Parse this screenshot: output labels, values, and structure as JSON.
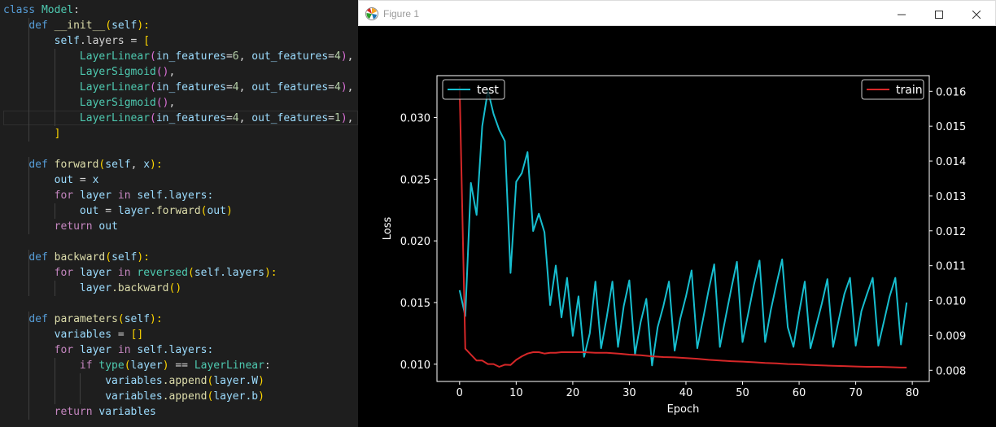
{
  "editor": {
    "lines": [
      [
        [
          "class ",
          "#569cd6"
        ],
        [
          "Model",
          "#4ec9b0"
        ],
        [
          ":",
          "#d4d4d4"
        ]
      ],
      [
        [
          "    ",
          ""
        ],
        [
          "def ",
          "#569cd6"
        ],
        [
          "__init__",
          "#dcdcaa"
        ],
        [
          "(",
          "#ffd700"
        ],
        [
          "self",
          "#9cdcfe"
        ],
        [
          "):",
          "#ffd700"
        ]
      ],
      [
        [
          "        ",
          ""
        ],
        [
          "self",
          "#9cdcfe"
        ],
        [
          ".layers = ",
          "#d4d4d4"
        ],
        [
          "[",
          "#ffd700"
        ]
      ],
      [
        [
          "            ",
          ""
        ],
        [
          "LayerLinear",
          "#4ec9b0"
        ],
        [
          "(",
          "#da70d6"
        ],
        [
          "in_features",
          "#9cdcfe"
        ],
        [
          "=",
          "#d4d4d4"
        ],
        [
          "6",
          "#b5cea8"
        ],
        [
          ", ",
          "#d4d4d4"
        ],
        [
          "out_features",
          "#9cdcfe"
        ],
        [
          "=",
          "#d4d4d4"
        ],
        [
          "4",
          "#b5cea8"
        ],
        [
          ")",
          "#da70d6"
        ],
        [
          ", ",
          "#d4d4d4"
        ],
        [
          "#",
          "#6a9955"
        ]
      ],
      [
        [
          "            ",
          ""
        ],
        [
          "LayerSigmoid",
          "#4ec9b0"
        ],
        [
          "()",
          "#da70d6"
        ],
        [
          ",",
          "#d4d4d4"
        ]
      ],
      [
        [
          "            ",
          ""
        ],
        [
          "LayerLinear",
          "#4ec9b0"
        ],
        [
          "(",
          "#da70d6"
        ],
        [
          "in_features",
          "#9cdcfe"
        ],
        [
          "=",
          "#d4d4d4"
        ],
        [
          "4",
          "#b5cea8"
        ],
        [
          ", ",
          "#d4d4d4"
        ],
        [
          "out_features",
          "#9cdcfe"
        ],
        [
          "=",
          "#d4d4d4"
        ],
        [
          "4",
          "#b5cea8"
        ],
        [
          ")",
          "#da70d6"
        ],
        [
          ",",
          "#d4d4d4"
        ]
      ],
      [
        [
          "            ",
          ""
        ],
        [
          "LayerSigmoid",
          "#4ec9b0"
        ],
        [
          "()",
          "#da70d6"
        ],
        [
          ",",
          "#d4d4d4"
        ]
      ],
      [
        [
          "            ",
          ""
        ],
        [
          "LayerLinear",
          "#4ec9b0"
        ],
        [
          "(",
          "#da70d6"
        ],
        [
          "in_features",
          "#9cdcfe"
        ],
        [
          "=",
          "#d4d4d4"
        ],
        [
          "4",
          "#b5cea8"
        ],
        [
          ", ",
          "#d4d4d4"
        ],
        [
          "out_features",
          "#9cdcfe"
        ],
        [
          "=",
          "#d4d4d4"
        ],
        [
          "1",
          "#b5cea8"
        ],
        [
          ")",
          "#da70d6"
        ],
        [
          ",",
          "#d4d4d4"
        ]
      ],
      [
        [
          "        ",
          ""
        ],
        [
          "]",
          "#ffd700"
        ]
      ],
      [
        [
          "",
          ""
        ]
      ],
      [
        [
          "    ",
          ""
        ],
        [
          "def ",
          "#569cd6"
        ],
        [
          "forward",
          "#dcdcaa"
        ],
        [
          "(",
          "#ffd700"
        ],
        [
          "self",
          "#9cdcfe"
        ],
        [
          ", ",
          "#d4d4d4"
        ],
        [
          "x",
          "#9cdcfe"
        ],
        [
          "):",
          "#ffd700"
        ]
      ],
      [
        [
          "        ",
          ""
        ],
        [
          "out",
          "#9cdcfe"
        ],
        [
          " = ",
          "#d4d4d4"
        ],
        [
          "x",
          "#9cdcfe"
        ]
      ],
      [
        [
          "        ",
          ""
        ],
        [
          "for ",
          "#c586c0"
        ],
        [
          "layer ",
          "#9cdcfe"
        ],
        [
          "in ",
          "#c586c0"
        ],
        [
          "self",
          "#9cdcfe"
        ],
        [
          ".layers:",
          "#9cdcfe"
        ]
      ],
      [
        [
          "            ",
          ""
        ],
        [
          "out",
          "#9cdcfe"
        ],
        [
          " = ",
          "#d4d4d4"
        ],
        [
          "layer",
          "#9cdcfe"
        ],
        [
          ".forward",
          "#dcdcaa"
        ],
        [
          "(",
          "#ffd700"
        ],
        [
          "out",
          "#9cdcfe"
        ],
        [
          ")",
          "#ffd700"
        ]
      ],
      [
        [
          "        ",
          ""
        ],
        [
          "return ",
          "#c586c0"
        ],
        [
          "out",
          "#9cdcfe"
        ]
      ],
      [
        [
          "",
          ""
        ]
      ],
      [
        [
          "    ",
          ""
        ],
        [
          "def ",
          "#569cd6"
        ],
        [
          "backward",
          "#dcdcaa"
        ],
        [
          "(",
          "#ffd700"
        ],
        [
          "self",
          "#9cdcfe"
        ],
        [
          "):",
          "#ffd700"
        ]
      ],
      [
        [
          "        ",
          ""
        ],
        [
          "for ",
          "#c586c0"
        ],
        [
          "layer ",
          "#9cdcfe"
        ],
        [
          "in ",
          "#c586c0"
        ],
        [
          "reversed",
          "#4ec9b0"
        ],
        [
          "(",
          "#ffd700"
        ],
        [
          "self",
          "#9cdcfe"
        ],
        [
          ".layers",
          "#9cdcfe"
        ],
        [
          "):",
          "#ffd700"
        ]
      ],
      [
        [
          "            ",
          ""
        ],
        [
          "layer",
          "#9cdcfe"
        ],
        [
          ".backward",
          "#dcdcaa"
        ],
        [
          "()",
          "#ffd700"
        ]
      ],
      [
        [
          "",
          ""
        ]
      ],
      [
        [
          "    ",
          ""
        ],
        [
          "def ",
          "#569cd6"
        ],
        [
          "parameters",
          "#dcdcaa"
        ],
        [
          "(",
          "#ffd700"
        ],
        [
          "self",
          "#9cdcfe"
        ],
        [
          "):",
          "#ffd700"
        ]
      ],
      [
        [
          "        ",
          ""
        ],
        [
          "variables",
          "#9cdcfe"
        ],
        [
          " = ",
          "#d4d4d4"
        ],
        [
          "[]",
          "#ffd700"
        ]
      ],
      [
        [
          "        ",
          ""
        ],
        [
          "for ",
          "#c586c0"
        ],
        [
          "layer ",
          "#9cdcfe"
        ],
        [
          "in ",
          "#c586c0"
        ],
        [
          "self",
          "#9cdcfe"
        ],
        [
          ".layers:",
          "#9cdcfe"
        ]
      ],
      [
        [
          "            ",
          ""
        ],
        [
          "if ",
          "#c586c0"
        ],
        [
          "type",
          "#4ec9b0"
        ],
        [
          "(",
          "#ffd700"
        ],
        [
          "layer",
          "#9cdcfe"
        ],
        [
          ")",
          "#ffd700"
        ],
        [
          " == ",
          "#d4d4d4"
        ],
        [
          "LayerLinear",
          "#4ec9b0"
        ],
        [
          ":",
          "#d4d4d4"
        ]
      ],
      [
        [
          "                ",
          ""
        ],
        [
          "variables",
          "#9cdcfe"
        ],
        [
          ".append",
          "#dcdcaa"
        ],
        [
          "(",
          "#ffd700"
        ],
        [
          "layer",
          "#9cdcfe"
        ],
        [
          ".W",
          "#9cdcfe"
        ],
        [
          ")",
          "#ffd700"
        ]
      ],
      [
        [
          "                ",
          ""
        ],
        [
          "variables",
          "#9cdcfe"
        ],
        [
          ".append",
          "#dcdcaa"
        ],
        [
          "(",
          "#ffd700"
        ],
        [
          "layer",
          "#9cdcfe"
        ],
        [
          ".b",
          "#9cdcfe"
        ],
        [
          ")",
          "#ffd700"
        ]
      ],
      [
        [
          "        ",
          ""
        ],
        [
          "return ",
          "#c586c0"
        ],
        [
          "variables",
          "#9cdcfe"
        ]
      ]
    ]
  },
  "window": {
    "title": "Figure 1",
    "minimize_icon": "minimize-icon",
    "maximize_icon": "maximize-icon",
    "close_icon": "close-icon"
  },
  "chart_data": {
    "type": "line",
    "xlabel": "Epoch",
    "ylabel": "Loss",
    "xlim": [
      -4,
      83
    ],
    "ylim_left": [
      0.0086,
      0.0334
    ],
    "ylim_right": [
      0.00768,
      0.01645
    ],
    "xticks": [
      "0",
      "10",
      "20",
      "30",
      "40",
      "50",
      "60",
      "70",
      "80"
    ],
    "yticks_left": [
      "0.010",
      "0.015",
      "0.020",
      "0.025",
      "0.030"
    ],
    "yticks_right": [
      "0.008",
      "0.009",
      "0.010",
      "0.011",
      "0.012",
      "0.013",
      "0.014",
      "0.015",
      "0.016"
    ],
    "series": [
      {
        "name": "test",
        "axis": "left",
        "color": "#17becf",
        "legend": "top-left",
        "x": [
          0,
          1,
          2,
          3,
          4,
          5,
          6,
          7,
          8,
          9,
          10,
          11,
          12,
          13,
          14,
          15,
          16,
          17,
          18,
          19,
          20,
          21,
          22,
          23,
          24,
          25,
          26,
          27,
          28,
          29,
          30,
          31,
          32,
          33,
          34,
          35,
          36,
          37,
          38,
          39,
          40,
          41,
          42,
          43,
          44,
          45,
          46,
          47,
          48,
          49,
          50,
          51,
          52,
          53,
          54,
          55,
          56,
          57,
          58,
          59,
          60,
          61,
          62,
          63,
          64,
          65,
          66,
          67,
          68,
          69,
          70,
          71,
          72,
          73,
          74,
          75,
          76,
          77,
          78,
          79
        ],
        "y": [
          0.016,
          0.0139,
          0.0247,
          0.0221,
          0.0293,
          0.0322,
          0.0303,
          0.029,
          0.0281,
          0.0174,
          0.0248,
          0.0255,
          0.0272,
          0.0208,
          0.0222,
          0.0207,
          0.0148,
          0.018,
          0.0138,
          0.017,
          0.0123,
          0.0155,
          0.0106,
          0.0125,
          0.0167,
          0.0113,
          0.0138,
          0.0167,
          0.0114,
          0.0147,
          0.0168,
          0.0108,
          0.0134,
          0.0153,
          0.0099,
          0.013,
          0.0147,
          0.0167,
          0.0111,
          0.0137,
          0.0155,
          0.0176,
          0.0113,
          0.0136,
          0.016,
          0.0181,
          0.0114,
          0.0138,
          0.0161,
          0.0183,
          0.0118,
          0.0141,
          0.0164,
          0.0184,
          0.0118,
          0.0144,
          0.0165,
          0.0185,
          0.013,
          0.0114,
          0.0142,
          0.0167,
          0.0113,
          0.0131,
          0.0149,
          0.0169,
          0.0114,
          0.0136,
          0.0157,
          0.017,
          0.0115,
          0.0143,
          0.0157,
          0.017,
          0.0115,
          0.0135,
          0.0155,
          0.017,
          0.0116,
          0.015
        ]
      },
      {
        "name": "train",
        "axis": "right",
        "color": "#d62728",
        "legend": "top-right",
        "x": [
          0,
          1,
          2,
          3,
          4,
          5,
          6,
          7,
          8,
          9,
          10,
          11,
          12,
          13,
          14,
          15,
          16,
          17,
          18,
          19,
          20,
          22,
          24,
          26,
          28,
          30,
          32,
          34,
          36,
          38,
          40,
          42,
          44,
          46,
          48,
          50,
          52,
          54,
          56,
          58,
          60,
          62,
          64,
          66,
          68,
          70,
          72,
          74,
          76,
          78,
          79
        ],
        "y": [
          0.01615,
          0.00862,
          0.00845,
          0.00828,
          0.00828,
          0.00818,
          0.00818,
          0.0081,
          0.00816,
          0.00815,
          0.0083,
          0.0084,
          0.00848,
          0.00852,
          0.00852,
          0.00848,
          0.0085,
          0.0085,
          0.00852,
          0.00852,
          0.00852,
          0.00852,
          0.0085,
          0.0085,
          0.00848,
          0.00845,
          0.00843,
          0.0084,
          0.00838,
          0.00837,
          0.00835,
          0.00833,
          0.0083,
          0.00828,
          0.00826,
          0.00825,
          0.00823,
          0.00821,
          0.0082,
          0.00818,
          0.00817,
          0.00815,
          0.00814,
          0.00813,
          0.00812,
          0.00811,
          0.0081,
          0.0081,
          0.00809,
          0.00808,
          0.00808
        ]
      }
    ]
  }
}
